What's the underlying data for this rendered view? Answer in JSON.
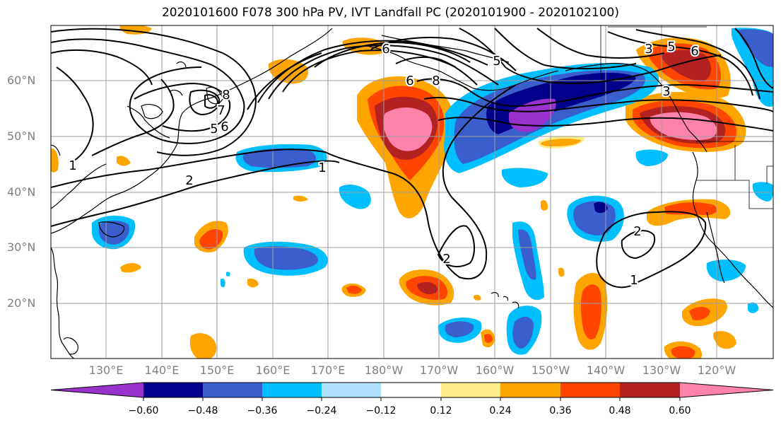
{
  "title": "2020101600 F078 300 hPa PV, IVT Landfall PC (2020101900 - 2020102100)",
  "lat_labels": [
    "60°N",
    "50°N",
    "40°N",
    "30°N",
    "20°N"
  ],
  "lon_labels": [
    "130°E",
    "140°E",
    "150°E",
    "160°E",
    "170°E",
    "180°W",
    "170°W",
    "160°W",
    "150°W",
    "140°W",
    "130°W",
    "120°W"
  ],
  "contour_labels": [
    "1",
    "2",
    "1",
    "2",
    "1",
    "2",
    "5",
    "6",
    "7",
    "8",
    "6",
    "8",
    "6",
    "5",
    "3",
    "6",
    "5",
    "3"
  ],
  "colorbar": {
    "ticks": [
      "−0.60",
      "−0.48",
      "−0.36",
      "−0.24",
      "−0.12",
      "0.12",
      "0.24",
      "0.36",
      "0.48",
      "0.60"
    ],
    "colors": [
      "#9932cc",
      "#00008b",
      "#3a5fcd",
      "#00bfff",
      "#b0e2ff",
      "#ffffff",
      "#ffec8b",
      "#ffa500",
      "#ff4500",
      "#b22222",
      "#ff82ab"
    ]
  }
}
